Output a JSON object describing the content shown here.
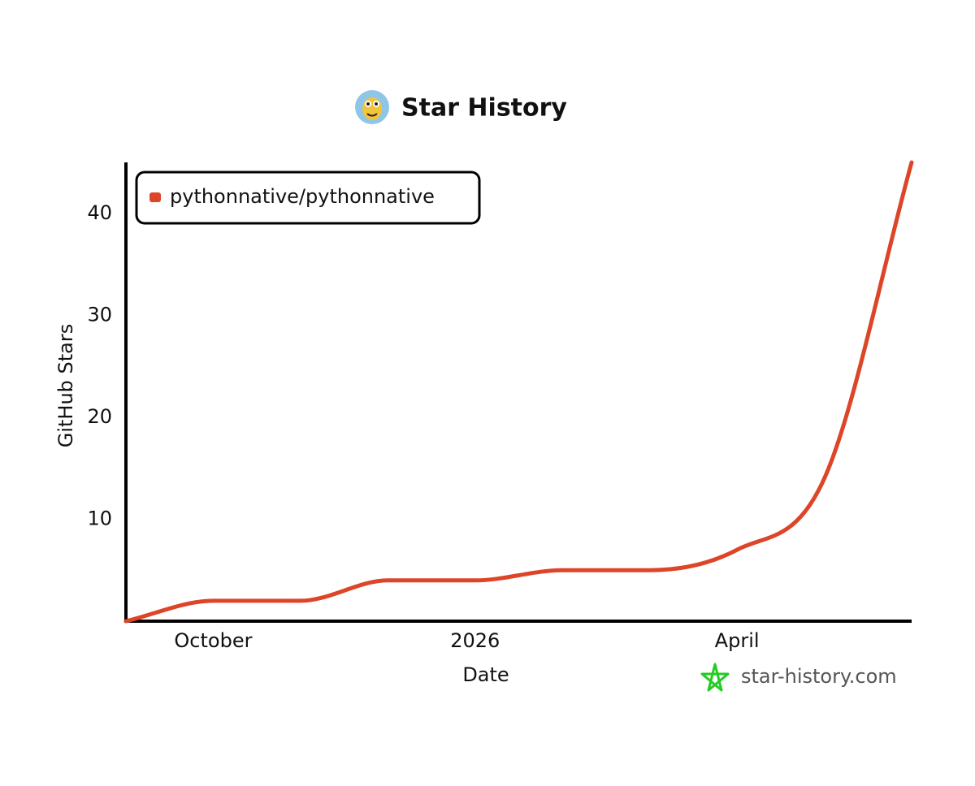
{
  "chart_data": {
    "type": "line",
    "title": "Star History",
    "x_label": "Date",
    "y_label": "GitHub Stars",
    "x": [
      "2025-09",
      "2025-10",
      "2025-11",
      "2025-12",
      "2026-01",
      "2026-02",
      "2026-03",
      "2026-04",
      "2026-05",
      "2026-06"
    ],
    "series": [
      {
        "name": "pythonnative/pythonnative",
        "color": "#dd4528",
        "values": [
          0,
          2,
          2,
          4,
          4,
          5,
          5,
          7,
          14,
          45
        ]
      }
    ],
    "xlim": [
      "2025-09",
      "2026-06"
    ],
    "xticks": [
      {
        "value": "2025-10",
        "label": "October"
      },
      {
        "value": "2026-01",
        "label": "2026"
      },
      {
        "value": "2026-04",
        "label": "April"
      }
    ],
    "ylim": [
      0,
      45
    ],
    "yticks": [
      10,
      20,
      30,
      40
    ],
    "grid": false,
    "legend": "top-left",
    "watermark": "star-history.com"
  }
}
